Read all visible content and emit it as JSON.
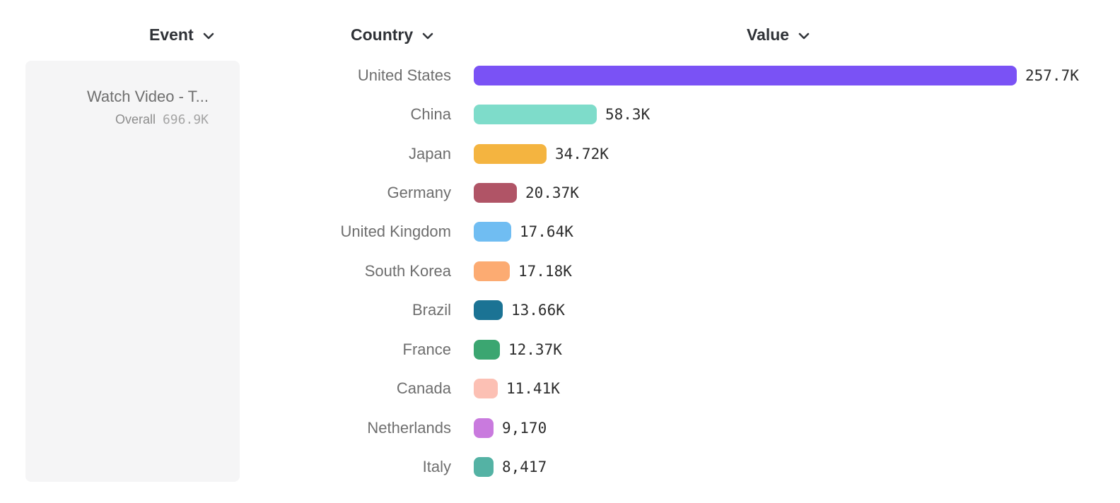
{
  "columns": {
    "event": {
      "label": "Event"
    },
    "country": {
      "label": "Country"
    },
    "value": {
      "label": "Value"
    }
  },
  "event_panel": {
    "event_name": "Watch Video - T...",
    "overall_label": "Overall",
    "overall_value": "696.9K"
  },
  "chart_data": {
    "type": "bar",
    "orientation": "horizontal",
    "value_axis_max": 257700,
    "categories": [
      "United States",
      "China",
      "Japan",
      "Germany",
      "United Kingdom",
      "South Korea",
      "Brazil",
      "France",
      "Canada",
      "Netherlands",
      "Italy"
    ],
    "rows": [
      {
        "country": "United States",
        "value": 257700,
        "value_label": "257.7K",
        "color": "#7a52f5"
      },
      {
        "country": "China",
        "value": 58300,
        "value_label": "58.3K",
        "color": "#7edcca"
      },
      {
        "country": "Japan",
        "value": 34720,
        "value_label": "34.72K",
        "color": "#f4b440"
      },
      {
        "country": "Germany",
        "value": 20370,
        "value_label": "20.37K",
        "color": "#b05466"
      },
      {
        "country": "United Kingdom",
        "value": 17640,
        "value_label": "17.64K",
        "color": "#70bdf2"
      },
      {
        "country": "South Korea",
        "value": 17180,
        "value_label": "17.18K",
        "color": "#fcab72"
      },
      {
        "country": "Brazil",
        "value": 13660,
        "value_label": "13.66K",
        "color": "#1b7394"
      },
      {
        "country": "France",
        "value": 12370,
        "value_label": "12.37K",
        "color": "#3ba671"
      },
      {
        "country": "Canada",
        "value": 11410,
        "value_label": "11.41K",
        "color": "#fcc0b4"
      },
      {
        "country": "Netherlands",
        "value": 9170,
        "value_label": "9,170",
        "color": "#c97ade"
      },
      {
        "country": "Italy",
        "value": 8417,
        "value_label": "8,417",
        "color": "#54b2a4"
      }
    ]
  }
}
